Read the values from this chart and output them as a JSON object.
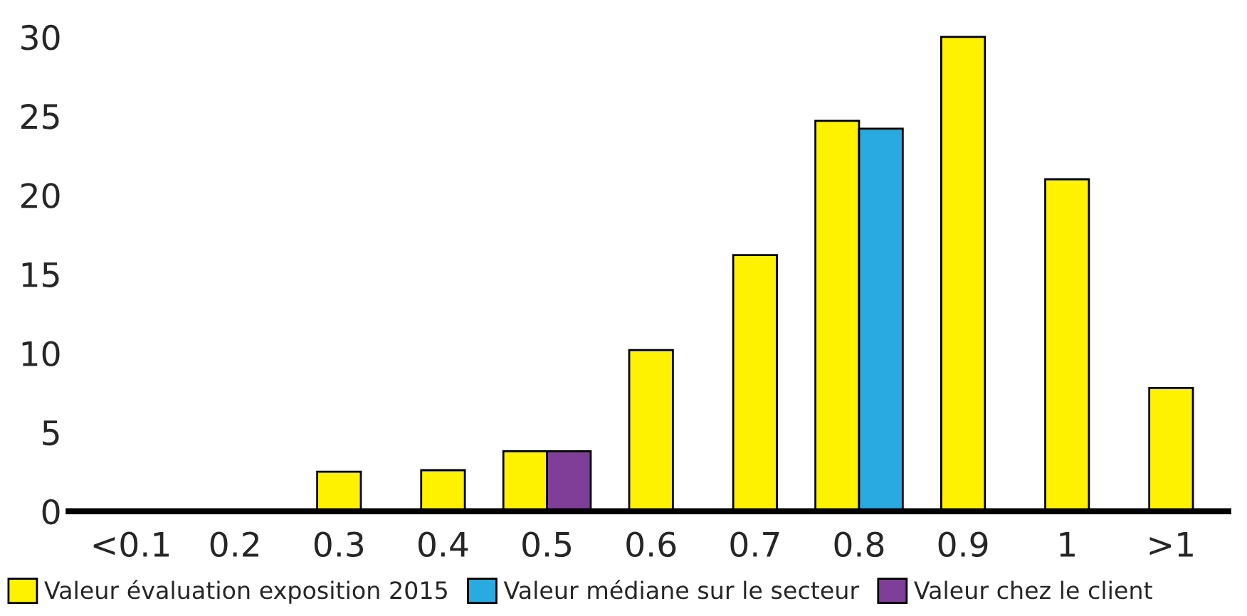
{
  "chart_data": {
    "type": "bar",
    "categories": [
      "<0.1",
      "0.2",
      "0.3",
      "0.4",
      "0.5",
      "0.6",
      "0.7",
      "0.8",
      "0.9",
      "1",
      ">1"
    ],
    "series": [
      {
        "name": "Valeur évaluation exposition 2015",
        "color": "#fff200",
        "values": [
          0,
          0,
          2.5,
          2.6,
          3.8,
          10.2,
          16.2,
          24.7,
          30,
          21,
          7.8
        ]
      },
      {
        "name": "Valeur médiane sur le secteur",
        "color": "#29abe2",
        "values": [
          null,
          null,
          null,
          null,
          null,
          null,
          null,
          24.2,
          null,
          null,
          null
        ]
      },
      {
        "name": "Valeur chez le client",
        "color": "#7f3f98",
        "values": [
          null,
          null,
          null,
          null,
          3.8,
          null,
          null,
          null,
          null,
          null,
          null
        ]
      }
    ],
    "ylim": [
      0,
      30
    ],
    "yticks": [
      0,
      5,
      10,
      15,
      20,
      25,
      30
    ],
    "grid": false,
    "legend": "bottom"
  }
}
